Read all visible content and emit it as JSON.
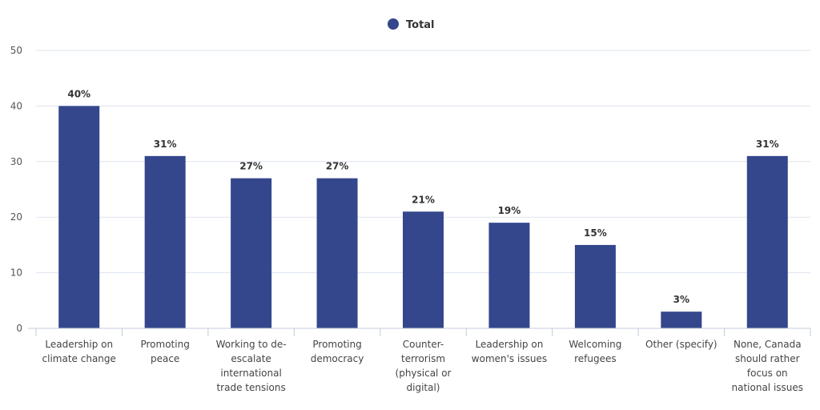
{
  "chart_data": {
    "type": "bar",
    "legend": {
      "entries": [
        "Total"
      ],
      "position": "top-center"
    },
    "series": [
      {
        "name": "Total",
        "color": "#34468c",
        "values": [
          40,
          31,
          27,
          27,
          21,
          19,
          15,
          3,
          31
        ]
      }
    ],
    "categories": [
      [
        "Leadership on",
        "climate change"
      ],
      [
        "Promoting",
        "peace"
      ],
      [
        "Working to de-",
        "escalate",
        "international",
        "trade tensions"
      ],
      [
        "Promoting",
        "democracy"
      ],
      [
        "Counter-",
        "terrorism",
        "(physical or",
        "digital)"
      ],
      [
        "Leadership on",
        "women's issues"
      ],
      [
        "Welcoming",
        "refugees"
      ],
      [
        "Other (specify)"
      ],
      [
        "None, Canada",
        "should rather",
        "focus on",
        "national issues"
      ]
    ],
    "data_labels": [
      "40%",
      "31%",
      "27%",
      "27%",
      "21%",
      "19%",
      "15%",
      "3%",
      "31%"
    ],
    "yticks": [
      "0",
      "10",
      "20",
      "30",
      "40",
      "50"
    ],
    "ylim": [
      0,
      50
    ],
    "grid": "horizontal",
    "xlabel": "",
    "ylabel": ""
  }
}
